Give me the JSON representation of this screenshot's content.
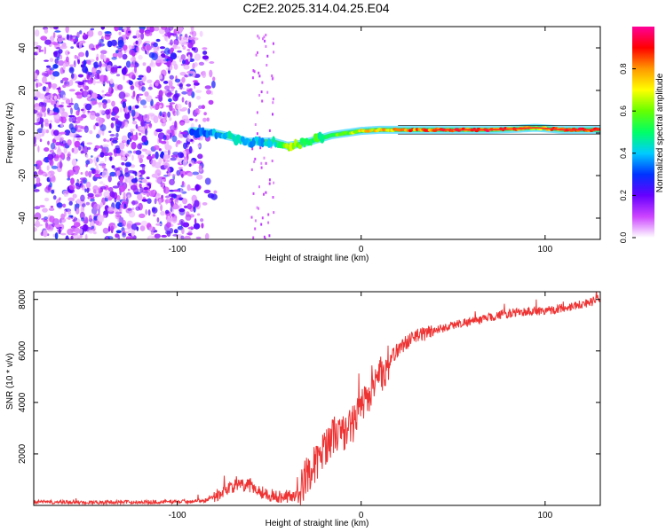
{
  "title": "C2E2.2025.314.04.25.E04",
  "chart_data": [
    {
      "type": "heatmap",
      "title": "C2E2.2025.314.04.25.E04",
      "xlabel": "Height of straight line (km)",
      "ylabel": "Frequency (Hz)",
      "xlim": [
        -178,
        130
      ],
      "ylim": [
        -50,
        50
      ],
      "x_ticks": [
        -100,
        0,
        100
      ],
      "x_tick_labels": [
        "-100",
        "0",
        "100"
      ],
      "y_ticks": [
        -40,
        -20,
        0,
        20,
        40
      ],
      "y_tick_labels": [
        "-40",
        "-20",
        "0",
        "20",
        "40"
      ],
      "noise_region_x": [
        -178,
        -78
      ],
      "sparse_noise_region_x": [
        -60,
        -48
      ],
      "signal_track": {
        "x": [
          -92,
          -80,
          -70,
          -62,
          -55,
          -48,
          -40,
          -32,
          -24,
          -16,
          -8,
          0,
          10,
          20,
          30,
          50,
          70,
          85,
          95,
          110,
          130
        ],
        "freq": [
          1,
          0,
          -2,
          -4,
          -4,
          -4,
          -6,
          -5,
          -3,
          -1,
          0,
          1,
          1.5,
          1.5,
          1.5,
          1.5,
          1.5,
          2,
          2.5,
          1.5,
          1.5
        ],
        "amplitude": [
          0.35,
          0.4,
          0.45,
          0.45,
          0.4,
          0.45,
          0.7,
          0.6,
          0.55,
          0.6,
          0.65,
          0.75,
          0.8,
          0.85,
          0.9,
          0.92,
          0.94,
          0.85,
          0.75,
          0.95,
          0.95
        ]
      },
      "colorbar": {
        "label": "Normalized spectral amplitude",
        "range": [
          0.0,
          1.0
        ],
        "ticks": [
          0.0,
          0.2,
          0.4,
          0.6,
          0.8
        ],
        "tick_labels": [
          "0.0",
          "0.2",
          "0.4",
          "0.6",
          "0.8"
        ]
      }
    },
    {
      "type": "line",
      "xlabel": "Height of straight line (km)",
      "ylabel": "SNR (10 * v/v)",
      "xlim": [
        -178,
        130
      ],
      "ylim": [
        0,
        8300
      ],
      "x_ticks": [
        -100,
        0,
        100
      ],
      "x_tick_labels": [
        "-100",
        "0",
        "100"
      ],
      "y_ticks": [
        2000,
        4000,
        6000,
        8000
      ],
      "y_tick_labels": [
        "2000",
        "4000",
        "6000",
        "8000"
      ],
      "color": "#ee3333",
      "series": [
        {
          "name": "SNR",
          "x": [
            -178,
            -150,
            -120,
            -100,
            -85,
            -78,
            -72,
            -66,
            -60,
            -55,
            -50,
            -45,
            -40,
            -35,
            -32,
            -30,
            -26,
            -22,
            -18,
            -14,
            -10,
            -6,
            -2,
            2,
            6,
            10,
            14,
            18,
            22,
            28,
            35,
            45,
            55,
            65,
            75,
            85,
            95,
            105,
            115,
            125,
            130
          ],
          "y": [
            130,
            120,
            130,
            140,
            200,
            400,
            700,
            800,
            750,
            550,
            400,
            350,
            350,
            400,
            700,
            1200,
            1500,
            1900,
            2500,
            2800,
            2800,
            3000,
            3500,
            4000,
            4600,
            5000,
            5400,
            5900,
            6200,
            6500,
            6700,
            6900,
            7100,
            7200,
            7400,
            7500,
            7550,
            7600,
            7750,
            7900,
            8050
          ]
        }
      ],
      "noise_amplitude": [
        {
          "from_x": -178,
          "to_x": -80,
          "amp": 150
        },
        {
          "from_x": -80,
          "to_x": -35,
          "amp": 500
        },
        {
          "from_x": -35,
          "to_x": 15,
          "amp": 1500
        },
        {
          "from_x": 15,
          "to_x": 40,
          "amp": 600
        },
        {
          "from_x": 40,
          "to_x": 130,
          "amp": 350
        }
      ]
    }
  ]
}
